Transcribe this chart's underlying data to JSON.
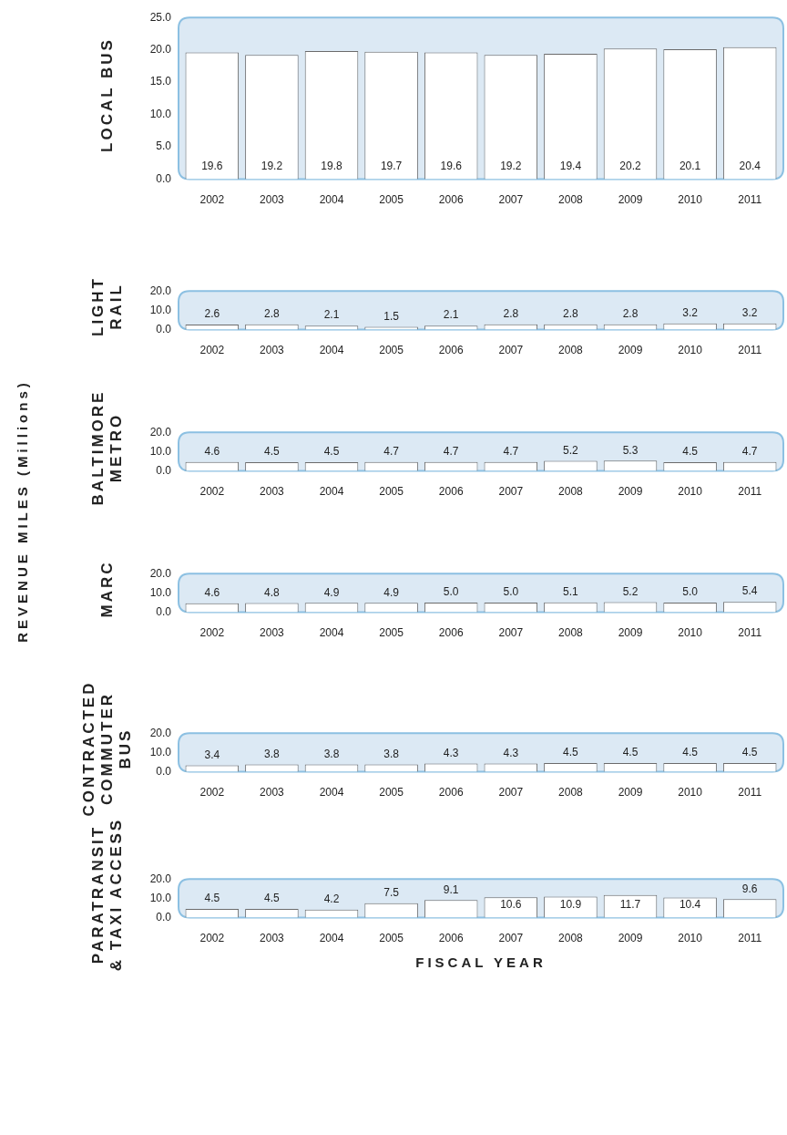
{
  "chart_data": [
    {
      "type": "bar",
      "ylabel": "LOCAL BUS",
      "annotations": [
        "REVENUE MILES (Millions)"
      ],
      "categories": [
        "2002",
        "2003",
        "2004",
        "2005",
        "2006",
        "2007",
        "2008",
        "2009",
        "2010",
        "2011"
      ],
      "values": [
        19.6,
        19.2,
        19.8,
        19.7,
        19.6,
        19.2,
        19.4,
        20.2,
        20.1,
        20.4
      ],
      "color": "#ffffff",
      "ylim": [
        0,
        25
      ],
      "yticks": [
        {
          "value": 0,
          "label": "0.0"
        },
        {
          "value": 5,
          "label": "5.0"
        },
        {
          "value": 10,
          "label": "10.0"
        },
        {
          "value": 15,
          "label": "15.0"
        },
        {
          "value": 20,
          "label": "20.0"
        },
        {
          "value": 25,
          "label": "25.0"
        }
      ],
      "data_labels": true
    },
    {
      "type": "bar",
      "ylabel": "LIGHT RAIL",
      "categories": [
        "2002",
        "2003",
        "2004",
        "2005",
        "2006",
        "2007",
        "2008",
        "2009",
        "2010",
        "2011"
      ],
      "values": [
        2.6,
        2.8,
        2.1,
        1.5,
        2.1,
        2.8,
        2.8,
        2.8,
        3.2,
        3.2
      ],
      "color": "#ffffff",
      "ylim": [
        0,
        20
      ],
      "yticks": [
        {
          "value": 0,
          "label": "0.0"
        },
        {
          "value": 10,
          "label": "10.0"
        },
        {
          "value": 20,
          "label": "20.0"
        }
      ],
      "data_labels": true
    },
    {
      "type": "bar",
      "ylabel": "BALTIMORE METRO",
      "categories": [
        "2002",
        "2003",
        "2004",
        "2005",
        "2006",
        "2007",
        "2008",
        "2009",
        "2010",
        "2011"
      ],
      "values": [
        4.6,
        4.5,
        4.5,
        4.7,
        4.7,
        4.7,
        5.2,
        5.3,
        4.5,
        4.7
      ],
      "color": "#ffffff",
      "ylim": [
        0,
        20
      ],
      "yticks": [
        {
          "value": 0,
          "label": "0.0"
        },
        {
          "value": 10,
          "label": "10.0"
        },
        {
          "value": 20,
          "label": "20.0"
        }
      ],
      "data_labels": true
    },
    {
      "type": "bar",
      "ylabel": "MARC",
      "categories": [
        "2002",
        "2003",
        "2004",
        "2005",
        "2006",
        "2007",
        "2008",
        "2009",
        "2010",
        "2011"
      ],
      "values": [
        4.6,
        4.8,
        4.9,
        4.9,
        5.0,
        5.0,
        5.1,
        5.2,
        5.0,
        5.4
      ],
      "value_labels": [
        "4.6",
        "4.8",
        "4.9",
        "4.9",
        "5.0",
        "5.0",
        "5.1",
        "5.2",
        "5.0",
        "5.4"
      ],
      "color": "#ffffff",
      "ylim": [
        0,
        20
      ],
      "yticks": [
        {
          "value": 0,
          "label": "0.0"
        },
        {
          "value": 10,
          "label": "10.0"
        },
        {
          "value": 20,
          "label": "20.0"
        }
      ]
    },
    {
      "type": "bar",
      "ylabel": "CONTRACTED COMMUTER BUS",
      "categories": [
        "2002",
        "2003",
        "2004",
        "2005",
        "2006",
        "2007",
        "2008",
        "2009",
        "2010",
        "2011"
      ],
      "values": [
        3.4,
        3.8,
        3.8,
        3.8,
        4.3,
        4.3,
        4.5,
        4.5,
        4.5,
        4.5
      ],
      "color": "#ffffff",
      "ylim": [
        0,
        20
      ],
      "yticks": [
        {
          "value": 0,
          "label": "0.0"
        },
        {
          "value": 10,
          "label": "10.0"
        },
        {
          "value": 20,
          "label": "20.0"
        }
      ],
      "data_labels": true
    },
    {
      "type": "bar",
      "ylabel": "PARATRANSIT & TAXI ACCESS",
      "xlabel": "FISCAL YEAR",
      "categories": [
        "2002",
        "2003",
        "2004",
        "2005",
        "2006",
        "2007",
        "2008",
        "2009",
        "2010",
        "2011"
      ],
      "values": [
        4.5,
        4.5,
        4.2,
        7.5,
        9.1,
        10.6,
        10.9,
        11.7,
        10.4,
        9.6
      ],
      "color": "#ffffff",
      "ylim": [
        0,
        20
      ],
      "yticks": [
        {
          "value": 0,
          "label": "0.0"
        },
        {
          "value": 10,
          "label": "10.0"
        },
        {
          "value": 20,
          "label": "20.0"
        }
      ],
      "data_labels": true
    }
  ]
}
